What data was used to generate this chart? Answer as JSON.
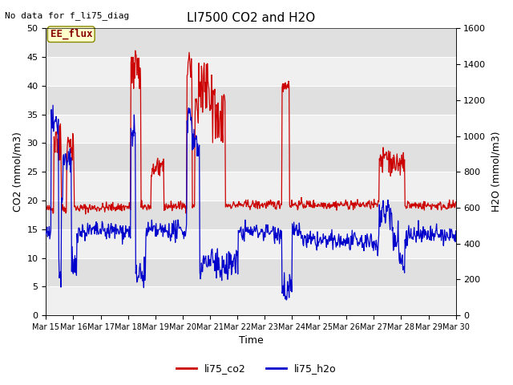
{
  "title": "LI7500 CO2 and H2O",
  "top_left_text": "No data for f_li75_diag",
  "xlabel": "Time",
  "ylabel_left": "CO2 (mmol/m3)",
  "ylabel_right": "H2O (mmol/m3)",
  "ylim_left": [
    0,
    50
  ],
  "ylim_right": [
    0,
    1600
  ],
  "yticks_left": [
    0,
    5,
    10,
    15,
    20,
    25,
    30,
    35,
    40,
    45,
    50
  ],
  "yticks_right": [
    0,
    200,
    400,
    600,
    800,
    1000,
    1200,
    1400,
    1600
  ],
  "xtick_labels": [
    "Mar 15",
    "Mar 16",
    "Mar 17",
    "Mar 18",
    "Mar 19",
    "Mar 20",
    "Mar 21",
    "Mar 22",
    "Mar 23",
    "Mar 24",
    "Mar 25",
    "Mar 26",
    "Mar 27",
    "Mar 28",
    "Mar 29",
    "Mar 30"
  ],
  "co2_color": "#cc0000",
  "h2o_color": "#0000cc",
  "fig_bg": "#ffffff",
  "plot_bg_light": "#f0f0f0",
  "plot_bg_dark": "#e0e0e0",
  "legend_label_co2": "li75_co2",
  "legend_label_h2o": "li75_h2o",
  "annotation_label": "EE_flux",
  "annotation_color": "#880000",
  "annotation_bg": "#ffffcc",
  "annotation_border": "#888800",
  "seed": 42
}
